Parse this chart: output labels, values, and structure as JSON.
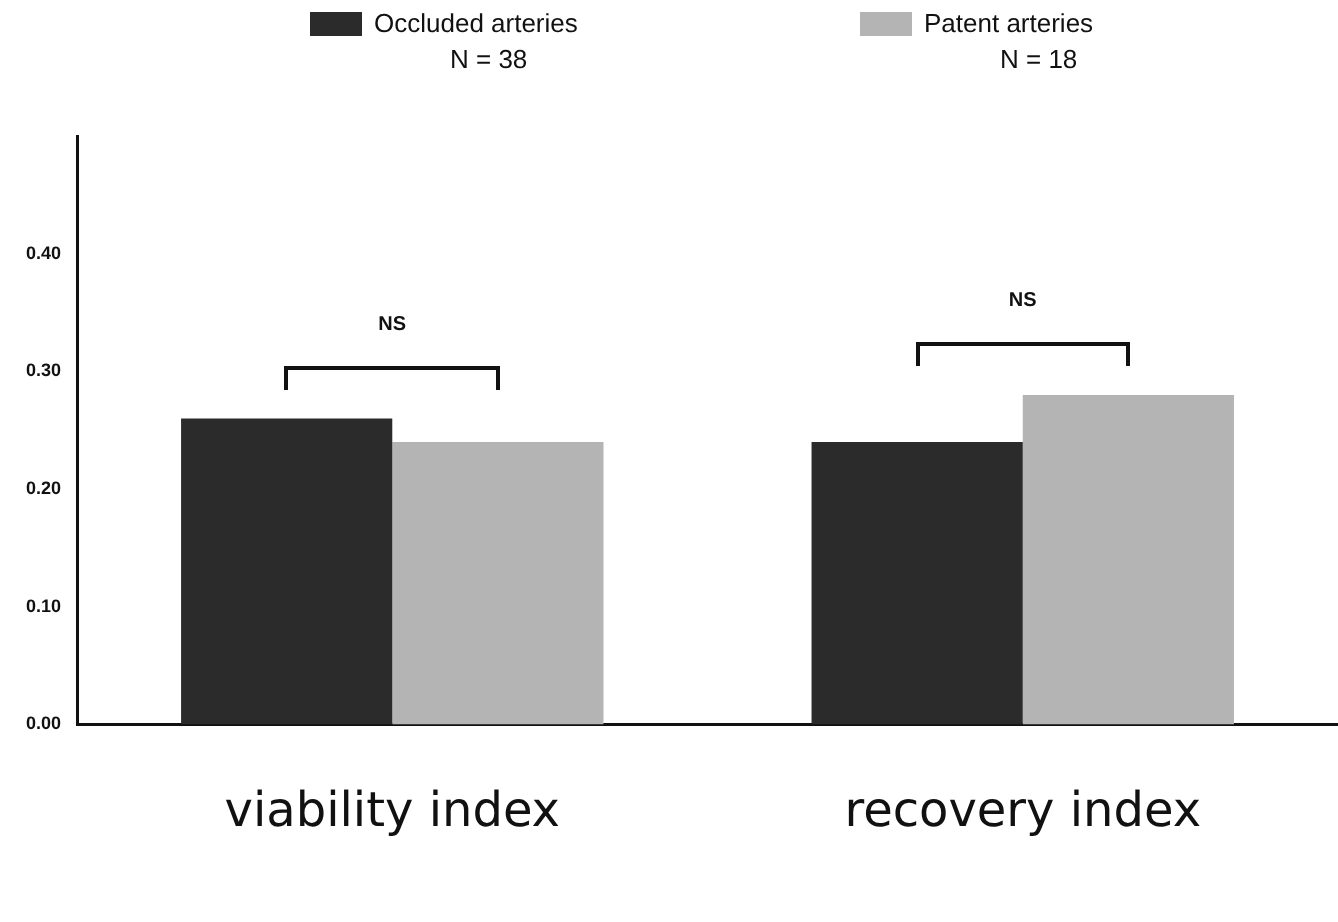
{
  "chart_data": {
    "type": "bar",
    "categories": [
      "viability index",
      "recovery index"
    ],
    "series": [
      {
        "name": "Occluded arteries",
        "color": "#2b2b2b",
        "values": [
          0.26,
          0.24
        ]
      },
      {
        "name": "Patent arteries",
        "color": "#b4b4b4",
        "values": [
          0.24,
          0.28
        ]
      }
    ],
    "ylim": [
      0,
      0.5
    ],
    "yticks": [
      {
        "value": 0,
        "label": "0.00"
      },
      {
        "value": 0.1,
        "label": "0.10"
      },
      {
        "value": 0.2,
        "label": "0.20"
      },
      {
        "value": 0.3,
        "label": "0.30"
      },
      {
        "value": 0.4,
        "label": "0.40"
      }
    ],
    "annotations": [
      "N = 38",
      "N = 18",
      "NS",
      "NS"
    ],
    "grid": false,
    "legend": "top"
  }
}
